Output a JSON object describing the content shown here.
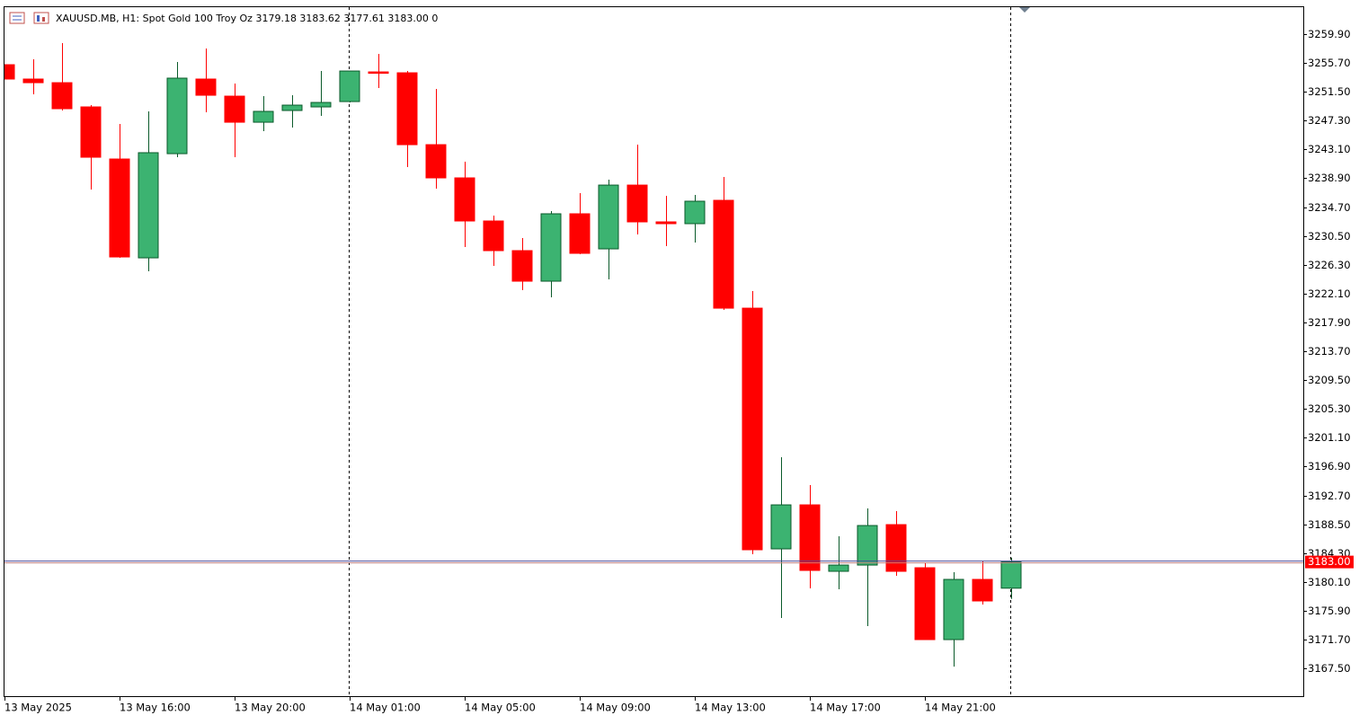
{
  "chart_data": {
    "type": "candlestick",
    "title": "XAUUSD.MB, H1:  Spot Gold 100 Troy Oz  3179.18 3183.62 3177.61 3183.00  0",
    "categories": [
      "13 May 2025",
      null,
      null,
      null,
      "13 May 16:00",
      null,
      null,
      null,
      "13 May 20:00",
      null,
      null,
      null,
      "14 May 01:00",
      null,
      null,
      null,
      "14 May 05:00",
      null,
      null,
      null,
      "14 May 09:00",
      null,
      null,
      null,
      "14 May 13:00",
      null,
      null,
      null,
      "14 May 17:00",
      null,
      null,
      null,
      "14 May 21:00",
      null,
      null,
      null
    ],
    "open": [
      3255.45,
      3253.36,
      3252.83,
      3249.3,
      3241.71,
      3227.31,
      3242.49,
      3253.36,
      3250.87,
      3247.07,
      3248.78,
      3249.3,
      3250.08,
      3254.4,
      3254.27,
      3243.8,
      3238.96,
      3232.68,
      3228.36,
      3223.91,
      3233.73,
      3228.62,
      3237.91,
      3232.55,
      3232.29,
      3235.69,
      3219.98,
      3184.91,
      3191.32,
      3181.64,
      3182.55,
      3188.44,
      3182.16,
      3171.69,
      3180.46,
      3179.18
    ],
    "high": [
      3255.45,
      3256.24,
      3258.59,
      3249.56,
      3246.81,
      3248.65,
      3255.84,
      3257.81,
      3252.7,
      3250.87,
      3251.0,
      3254.53,
      3254.53,
      3257.02,
      3254.53,
      3251.92,
      3241.32,
      3233.46,
      3230.19,
      3234.12,
      3236.74,
      3238.7,
      3243.8,
      3236.34,
      3236.47,
      3239.09,
      3222.47,
      3198.26,
      3194.2,
      3186.74,
      3190.8,
      3190.41,
      3182.82,
      3181.51,
      3183.08,
      3183.62
    ],
    "low": [
      3253.36,
      3251.13,
      3248.78,
      3237.26,
      3227.31,
      3225.35,
      3241.97,
      3248.51,
      3241.97,
      3245.77,
      3246.29,
      3247.99,
      3249.95,
      3252.05,
      3240.53,
      3237.39,
      3228.88,
      3226.14,
      3222.6,
      3221.55,
      3227.84,
      3224.17,
      3230.72,
      3229.01,
      3229.54,
      3219.72,
      3184.12,
      3174.83,
      3179.15,
      3179.02,
      3173.66,
      3180.98,
      3171.69,
      3167.76,
      3176.8,
      3177.61
    ],
    "close": [
      3253.36,
      3252.83,
      3249.04,
      3241.97,
      3227.44,
      3242.63,
      3253.49,
      3251.0,
      3247.07,
      3248.65,
      3249.56,
      3249.95,
      3254.53,
      3254.27,
      3243.8,
      3238.96,
      3232.68,
      3228.36,
      3223.91,
      3233.73,
      3227.97,
      3237.91,
      3232.55,
      3232.29,
      3235.56,
      3219.98,
      3184.78,
      3191.32,
      3181.77,
      3182.55,
      3188.31,
      3181.64,
      3171.69,
      3180.46,
      3177.32,
      3183.0
    ],
    "up_color": "#3cb371",
    "down_color": "#ff0000",
    "last_price": {
      "value": 3183.0,
      "label": "3183.00"
    },
    "ylim": [
      3163.45,
      3263.83
    ],
    "yticks": [
      {
        "value": 3259.9,
        "label": "3259.90"
      },
      {
        "value": 3255.7,
        "label": "3255.70"
      },
      {
        "value": 3251.5,
        "label": "3251.50"
      },
      {
        "value": 3247.3,
        "label": "3247.30"
      },
      {
        "value": 3243.1,
        "label": "3243.10"
      },
      {
        "value": 3238.9,
        "label": "3238.90"
      },
      {
        "value": 3234.7,
        "label": "3234.70"
      },
      {
        "value": 3230.5,
        "label": "3230.50"
      },
      {
        "value": 3226.3,
        "label": "3226.30"
      },
      {
        "value": 3222.1,
        "label": "3222.10"
      },
      {
        "value": 3217.9,
        "label": "3217.90"
      },
      {
        "value": 3213.7,
        "label": "3213.70"
      },
      {
        "value": 3209.5,
        "label": "3209.50"
      },
      {
        "value": 3205.3,
        "label": "3205.30"
      },
      {
        "value": 3201.1,
        "label": "3201.10"
      },
      {
        "value": 3196.9,
        "label": "3196.90"
      },
      {
        "value": 3192.7,
        "label": "3192.70"
      },
      {
        "value": 3188.5,
        "label": "3188.50"
      },
      {
        "value": 3184.3,
        "label": "3184.30"
      },
      {
        "value": 3180.1,
        "label": "3180.10"
      },
      {
        "value": 3175.9,
        "label": "3175.90"
      },
      {
        "value": 3171.7,
        "label": "3171.70"
      },
      {
        "value": 3167.5,
        "label": "3167.50"
      }
    ]
  }
}
